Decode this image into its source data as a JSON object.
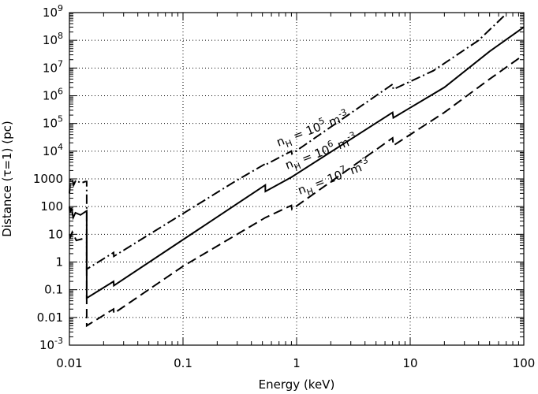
{
  "chart_data": {
    "type": "line",
    "title": "",
    "xlabel": "Energy (keV)",
    "ylabel": "Distance (τ=1) (pc)",
    "x_scale": "log",
    "y_scale": "log",
    "xlim": [
      0.01,
      100
    ],
    "ylim": [
      0.001,
      1000000000
    ],
    "grid": true,
    "x_ticks": [
      {
        "value": 0.01,
        "label": "0.01"
      },
      {
        "value": 0.1,
        "label": "0.1"
      },
      {
        "value": 1,
        "label": "1"
      },
      {
        "value": 10,
        "label": "10"
      },
      {
        "value": 100,
        "label": "100"
      }
    ],
    "y_ticks": [
      {
        "value": 0.001,
        "base": "10",
        "exp": "-3",
        "label": ""
      },
      {
        "value": 0.01,
        "base": "",
        "exp": "",
        "label": "0.01"
      },
      {
        "value": 0.1,
        "base": "",
        "exp": "",
        "label": "0.1"
      },
      {
        "value": 1,
        "base": "",
        "exp": "",
        "label": "1"
      },
      {
        "value": 10,
        "base": "",
        "exp": "",
        "label": "10"
      },
      {
        "value": 100,
        "base": "",
        "exp": "",
        "label": "100"
      },
      {
        "value": 1000,
        "base": "",
        "exp": "",
        "label": "1000"
      },
      {
        "value": 10000,
        "base": "10",
        "exp": "4",
        "label": ""
      },
      {
        "value": 100000,
        "base": "10",
        "exp": "5",
        "label": ""
      },
      {
        "value": 1000000,
        "base": "10",
        "exp": "6",
        "label": ""
      },
      {
        "value": 10000000,
        "base": "10",
        "exp": "7",
        "label": ""
      },
      {
        "value": 100000000,
        "base": "10",
        "exp": "8",
        "label": ""
      },
      {
        "value": 1000000000,
        "base": "10",
        "exp": "9",
        "label": ""
      }
    ],
    "series": [
      {
        "style": "dashdot",
        "points": [
          [
            0.01,
            300
          ],
          [
            0.0102,
            900
          ],
          [
            0.0106,
            1000
          ],
          [
            0.0109,
            600
          ],
          [
            0.0114,
            900
          ],
          [
            0.0126,
            700
          ],
          [
            0.0138,
            800
          ],
          [
            0.0142,
            800
          ],
          [
            0.0142,
            0.55
          ],
          [
            0.0245,
            2.2
          ],
          [
            0.0246,
            1.6
          ],
          [
            0.29,
            830
          ],
          [
            0.53,
            3500
          ],
          [
            0.531,
            3200
          ],
          [
            0.9,
            10000
          ],
          [
            0.91,
            8000
          ],
          [
            7.0,
            2600000
          ],
          [
            7.1,
            1700000
          ],
          [
            16,
            8000000
          ],
          [
            40,
            100000000
          ],
          [
            70,
            900000000
          ]
        ]
      },
      {
        "style": "solid",
        "points": [
          [
            0.01,
            100
          ],
          [
            0.0101,
            60
          ],
          [
            0.0104,
            90
          ],
          [
            0.0108,
            40
          ],
          [
            0.0113,
            60
          ],
          [
            0.0125,
            50
          ],
          [
            0.0142,
            70
          ],
          [
            0.0142,
            0.05
          ],
          [
            0.0245,
            0.2
          ],
          [
            0.0246,
            0.14
          ],
          [
            0.53,
            600
          ],
          [
            0.531,
            350
          ],
          [
            0.9,
            1150
          ],
          [
            7.0,
            250000
          ],
          [
            7.1,
            160000
          ],
          [
            20,
            2000000
          ],
          [
            50,
            40000000
          ],
          [
            100,
            300000000
          ]
        ]
      },
      {
        "style": "dashed",
        "points": [
          [
            0.01,
            10
          ],
          [
            0.0102,
            8
          ],
          [
            0.0106,
            12
          ],
          [
            0.0115,
            6
          ],
          [
            0.0142,
            7.5
          ],
          [
            0.0142,
            0.005
          ],
          [
            0.0245,
            0.02
          ],
          [
            0.0246,
            0.014
          ],
          [
            0.1,
            0.7
          ],
          [
            0.53,
            40
          ],
          [
            0.9,
            110
          ],
          [
            0.91,
            80
          ],
          [
            7.0,
            30000
          ],
          [
            7.1,
            16000
          ],
          [
            20,
            250000
          ],
          [
            50,
            4000000
          ],
          [
            100,
            30000000
          ]
        ]
      }
    ],
    "annotations": [
      {
        "prefix": "n",
        "sub": "H",
        "mid": " = 10",
        "sup": "5",
        "suffix": " m",
        "sup2": "-3"
      },
      {
        "prefix": "n",
        "sub": "H",
        "mid": " = 10",
        "sup": "6",
        "suffix": " m",
        "sup2": "-3"
      },
      {
        "prefix": "n",
        "sub": "H",
        "mid": " = 10",
        "sup": "7",
        "suffix": " m",
        "sup2": "-3"
      }
    ]
  }
}
